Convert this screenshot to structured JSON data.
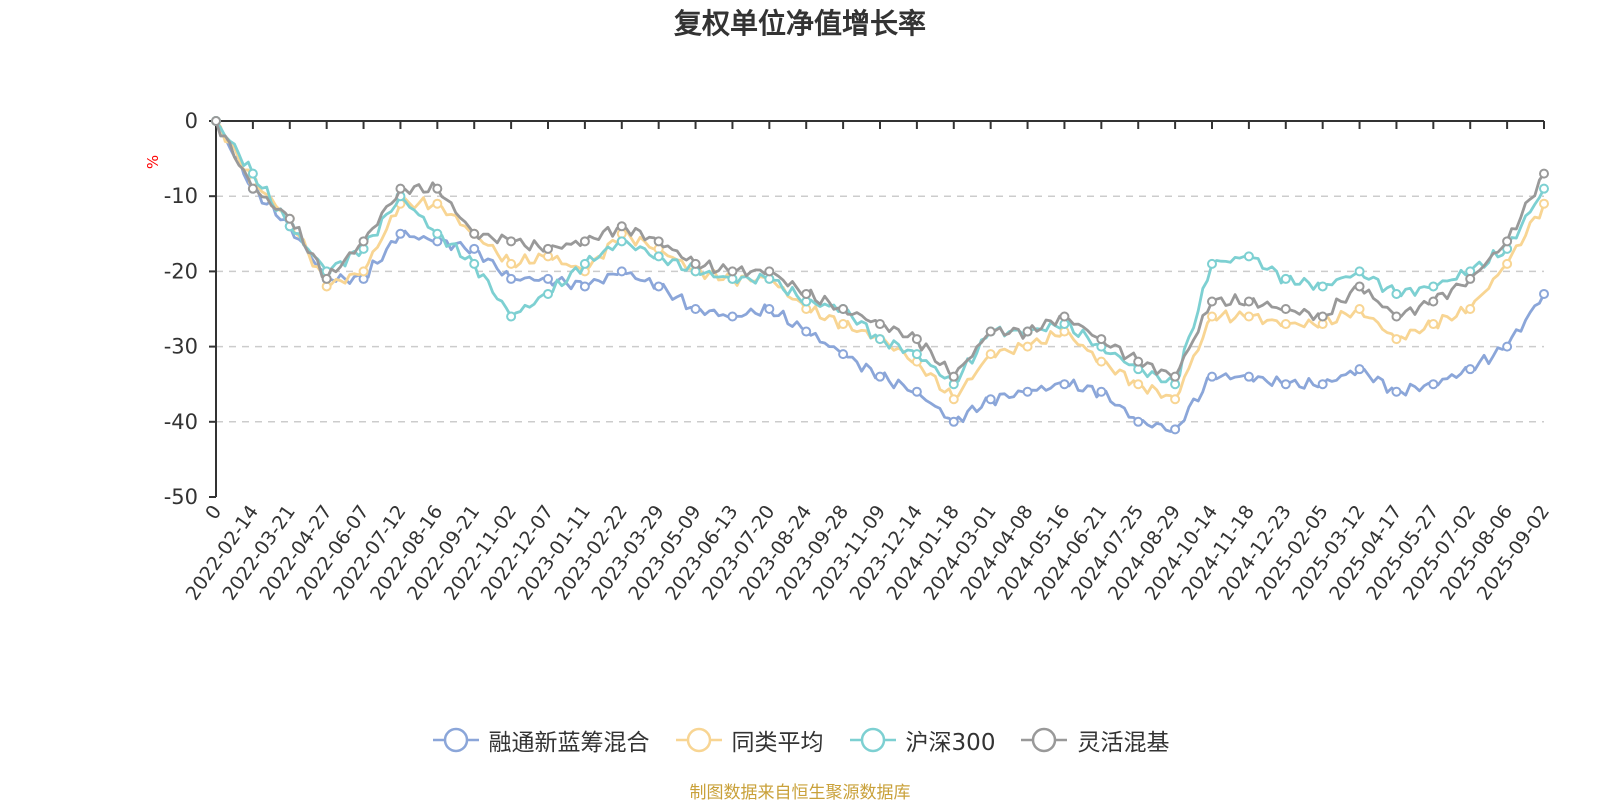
{
  "title": "复权单位净值增长率",
  "source_note": "制图数据来自恒生聚源数据库",
  "chart_data": {
    "type": "line",
    "title": "复权单位净值增长率",
    "ylabel": "%",
    "ylim": [
      -50,
      0
    ],
    "yticks": [
      0,
      -10,
      -20,
      -30,
      -40,
      -50
    ],
    "grid": true,
    "legend_position": "bottom",
    "x": [
      "0",
      "2022-02-14",
      "2022-03-21",
      "2022-04-27",
      "2022-06-07",
      "2022-07-12",
      "2022-08-16",
      "2022-09-21",
      "2022-11-02",
      "2022-12-07",
      "2023-01-11",
      "2023-02-22",
      "2023-03-29",
      "2023-05-09",
      "2023-06-13",
      "2023-07-20",
      "2023-08-24",
      "2023-09-28",
      "2023-11-09",
      "2023-12-14",
      "2024-01-18",
      "2024-03-01",
      "2024-04-08",
      "2024-05-16",
      "2024-06-21",
      "2024-07-25",
      "2024-08-29",
      "2024-10-14",
      "2024-11-18",
      "2024-12-23",
      "2025-02-05",
      "2025-03-12",
      "2025-04-17",
      "2025-05-27",
      "2025-07-02",
      "2025-08-06",
      "2025-09-02"
    ],
    "series": [
      {
        "name": "融通新蓝筹混合",
        "color": "#8ba6d9",
        "values": [
          0,
          -9,
          -14,
          -21,
          -21,
          -15,
          -16,
          -17,
          -21,
          -21,
          -22,
          -20,
          -22,
          -25,
          -26,
          -25,
          -28,
          -31,
          -34,
          -36,
          -40,
          -37,
          -36,
          -35,
          -36,
          -40,
          -41,
          -34,
          -34,
          -35,
          -35,
          -33,
          -36,
          -35,
          -33,
          -30,
          -23
        ]
      },
      {
        "name": "同类平均",
        "color": "#f8d593",
        "values": [
          0,
          -8,
          -13,
          -22,
          -20,
          -11,
          -11,
          -15,
          -19,
          -18,
          -20,
          -15,
          -17,
          -20,
          -21,
          -21,
          -25,
          -27,
          -29,
          -32,
          -37,
          -31,
          -30,
          -28,
          -32,
          -35,
          -37,
          -26,
          -26,
          -27,
          -27,
          -25,
          -29,
          -27,
          -25,
          -19,
          -11
        ]
      },
      {
        "name": "沪深300",
        "color": "#7dd0d2",
        "values": [
          0,
          -7,
          -14,
          -20,
          -17,
          -10,
          -15,
          -19,
          -26,
          -23,
          -19,
          -16,
          -18,
          -20,
          -21,
          -21,
          -24,
          -25,
          -29,
          -31,
          -35,
          -28,
          -28,
          -27,
          -30,
          -33,
          -35,
          -19,
          -18,
          -21,
          -22,
          -20,
          -23,
          -22,
          -20,
          -17,
          -9
        ]
      },
      {
        "name": "灵活混基",
        "color": "#999999",
        "values": [
          0,
          -9,
          -13,
          -21,
          -16,
          -9,
          -9,
          -15,
          -16,
          -17,
          -16,
          -14,
          -16,
          -19,
          -20,
          -20,
          -23,
          -25,
          -27,
          -29,
          -34,
          -28,
          -28,
          -26,
          -29,
          -32,
          -34,
          -24,
          -24,
          -25,
          -26,
          -22,
          -26,
          -24,
          -21,
          -16,
          -7
        ]
      }
    ]
  }
}
